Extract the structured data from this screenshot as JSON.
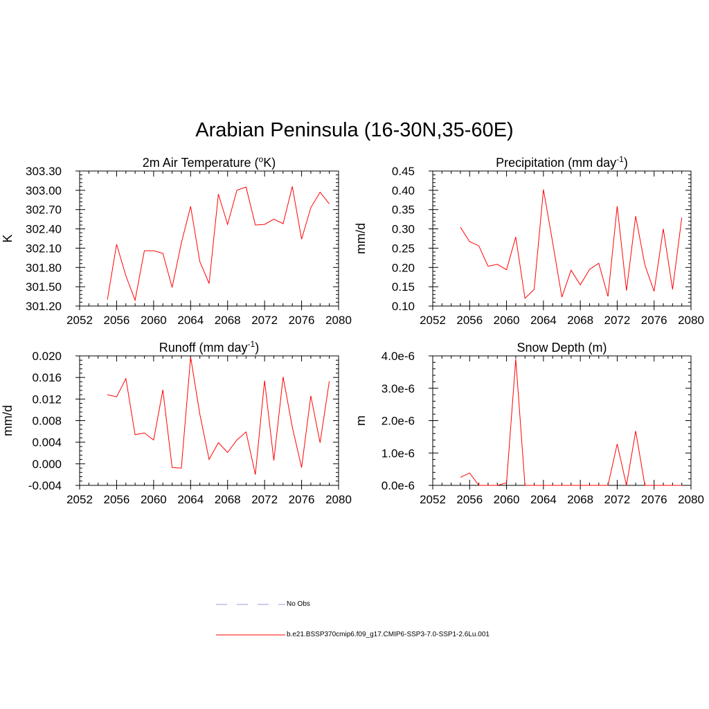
{
  "title": "Arabian Peninsula (16-30N,35-60E)",
  "legend": [
    {
      "label": "No Obs",
      "color": "#9999dd",
      "dash": true
    },
    {
      "label": "b.e21.BSSP370cmip6.f09_g17.CMIP6-SSP3-7.0-SSP1-2.6Lu.001",
      "color": "#ff0000",
      "dash": false
    }
  ],
  "chart_data": [
    {
      "type": "line",
      "title": "2m Air Temperature (",
      "title_sup": "o",
      "title_end": "K)",
      "ylabel": "K",
      "xlim": [
        2052,
        2080
      ],
      "ylim": [
        301.2,
        303.3
      ],
      "xticks": [
        2052,
        2056,
        2060,
        2064,
        2068,
        2072,
        2076,
        2080
      ],
      "yticks": [
        301.2,
        301.5,
        301.8,
        302.1,
        302.4,
        302.7,
        303.0,
        303.3
      ],
      "ytick_labels": [
        "301.20",
        "301.50",
        "301.80",
        "302.10",
        "302.40",
        "302.70",
        "303.00",
        "303.30"
      ],
      "x": [
        2055,
        2056,
        2057,
        2058,
        2059,
        2060,
        2061,
        2062,
        2063,
        2064,
        2065,
        2066,
        2067,
        2068,
        2069,
        2070,
        2071,
        2072,
        2073,
        2074,
        2075,
        2076,
        2077,
        2078,
        2079
      ],
      "values": [
        301.3,
        302.16,
        301.67,
        301.29,
        302.06,
        302.06,
        302.02,
        301.49,
        302.18,
        302.75,
        301.89,
        301.55,
        302.94,
        302.47,
        303.0,
        303.05,
        302.46,
        302.47,
        302.55,
        302.48,
        303.06,
        302.24,
        302.73,
        302.97,
        302.79
      ]
    },
    {
      "type": "line",
      "title": "Precipitation (mm day",
      "title_sup": "-1",
      "title_end": ")",
      "ylabel": "mm/d",
      "xlim": [
        2052,
        2080
      ],
      "ylim": [
        0.1,
        0.45
      ],
      "xticks": [
        2052,
        2056,
        2060,
        2064,
        2068,
        2072,
        2076,
        2080
      ],
      "yticks": [
        0.1,
        0.15,
        0.2,
        0.25,
        0.3,
        0.35,
        0.4,
        0.45
      ],
      "ytick_labels": [
        "0.10",
        "0.15",
        "0.20",
        "0.25",
        "0.30",
        "0.35",
        "0.40",
        "0.45"
      ],
      "x": [
        2055,
        2056,
        2057,
        2058,
        2059,
        2060,
        2061,
        2062,
        2063,
        2064,
        2065,
        2066,
        2067,
        2068,
        2069,
        2070,
        2071,
        2072,
        2073,
        2074,
        2075,
        2076,
        2077,
        2078,
        2079
      ],
      "values": [
        0.304,
        0.267,
        0.256,
        0.203,
        0.208,
        0.194,
        0.279,
        0.12,
        0.143,
        0.402,
        0.265,
        0.123,
        0.193,
        0.155,
        0.195,
        0.211,
        0.125,
        0.359,
        0.14,
        0.333,
        0.206,
        0.138,
        0.3,
        0.143,
        0.329
      ]
    },
    {
      "type": "line",
      "title": "Runoff (mm day",
      "title_sup": "-1",
      "title_end": ")",
      "ylabel": "mm/d",
      "xlim": [
        2052,
        2080
      ],
      "ylim": [
        -0.004,
        0.02
      ],
      "xticks": [
        2052,
        2056,
        2060,
        2064,
        2068,
        2072,
        2076,
        2080
      ],
      "yticks": [
        -0.004,
        0.0,
        0.004,
        0.008,
        0.012,
        0.016,
        0.02
      ],
      "ytick_labels": [
        "-0.004",
        "0.000",
        "0.004",
        "0.008",
        "0.012",
        "0.016",
        "0.020"
      ],
      "x": [
        2055,
        2056,
        2057,
        2058,
        2059,
        2060,
        2061,
        2062,
        2063,
        2064,
        2065,
        2066,
        2067,
        2068,
        2069,
        2070,
        2071,
        2072,
        2073,
        2074,
        2075,
        2076,
        2077,
        2078,
        2079
      ],
      "values": [
        0.0128,
        0.0124,
        0.0158,
        0.0054,
        0.0057,
        0.0044,
        0.0137,
        -0.0007,
        -0.0008,
        0.0198,
        0.0092,
        0.0008,
        0.0039,
        0.0021,
        0.0044,
        0.0059,
        -0.002,
        0.0154,
        0.0006,
        0.0161,
        0.0068,
        -0.0007,
        0.0126,
        0.0039,
        0.0153
      ]
    },
    {
      "type": "line",
      "title": "Snow Depth (m)",
      "title_sup": "",
      "title_end": "",
      "ylabel": "m",
      "xlim": [
        2052,
        2080
      ],
      "ylim": [
        0,
        4e-06
      ],
      "xticks": [
        2052,
        2056,
        2060,
        2064,
        2068,
        2072,
        2076,
        2080
      ],
      "yticks": [
        0,
        1e-06,
        2e-06,
        3e-06,
        4e-06
      ],
      "ytick_labels": [
        "0.0e-6",
        "1.0e-6",
        "2.0e-6",
        "3.0e-6",
        "4.0e-6"
      ],
      "x": [
        2055,
        2056,
        2057,
        2058,
        2059,
        2060,
        2061,
        2062,
        2063,
        2064,
        2065,
        2066,
        2067,
        2068,
        2069,
        2070,
        2071,
        2072,
        2073,
        2074,
        2075,
        2076,
        2077,
        2078,
        2079
      ],
      "values": [
        2.5e-07,
        3.8e-07,
        0,
        0,
        0,
        8e-08,
        3.9e-06,
        0,
        0,
        0,
        0,
        0,
        0,
        0,
        0,
        0,
        0,
        1.28e-06,
        0,
        1.68e-06,
        0,
        0,
        0,
        0,
        0
      ]
    }
  ]
}
